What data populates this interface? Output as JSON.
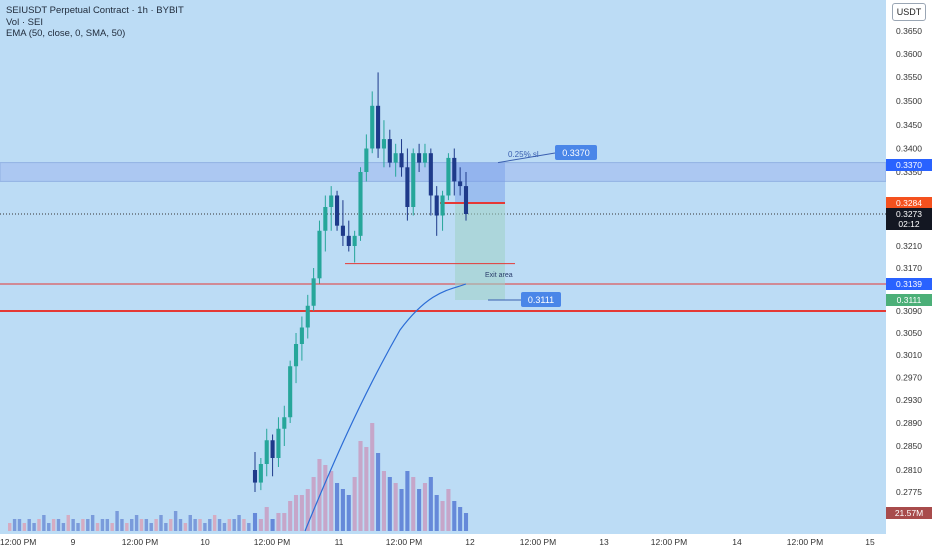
{
  "header": {
    "title": "SEIUSDT Perpetual Contract · 1h · BYBIT",
    "volume_label": "Vol · SEI",
    "indicator_label": "EMA (50, close, 0, SMA, 50)",
    "currency": "USDT"
  },
  "colors": {
    "background": "#bcdcf5",
    "up_candle": "#26a69a",
    "down_candle": "#1e3a8a",
    "ema": "#2b6cd6",
    "red_line": "#e53935",
    "zone_fill": "#9fb8f0"
  },
  "chart_data": {
    "type": "candlestick",
    "price_axis": {
      "ticks": [
        "0.3650",
        "0.3600",
        "0.3550",
        "0.3500",
        "0.3450",
        "0.3400",
        "0.3350",
        "0.3210",
        "0.3170",
        "0.3090",
        "0.3050",
        "0.3010",
        "0.2970",
        "0.2930",
        "0.2890",
        "0.2850",
        "0.2810",
        "0.2775"
      ],
      "ylim": [
        0.2745,
        0.369
      ]
    },
    "time_axis": {
      "labels": [
        "12:00 PM",
        "9",
        "12:00 PM",
        "10",
        "12:00 PM",
        "11",
        "12:00 PM",
        "12",
        "12:00 PM",
        "13",
        "12:00 PM",
        "14",
        "12:00 PM",
        "15"
      ]
    },
    "price_labels": [
      {
        "value": "0.3370",
        "style": "blue"
      },
      {
        "value": "0.3284",
        "style": "orange"
      },
      {
        "value": "0.3273",
        "style": "black"
      },
      {
        "value": "02:12",
        "style": "black"
      },
      {
        "value": "0.3139",
        "style": "blue"
      },
      {
        "value": "0.3111",
        "style": "green"
      },
      {
        "value": "21.57M",
        "style": "volume"
      }
    ],
    "levels": {
      "zone_top": 0.337,
      "zone_bottom": 0.333,
      "current_price": 0.3273,
      "entry": 0.3284,
      "red_line_1": 0.3139,
      "red_line_2": 0.309,
      "take_profit": 0.3111,
      "stop_marker": 0.337
    },
    "annotations": [
      {
        "text": "0.25% sl"
      },
      {
        "text": "0.3370"
      },
      {
        "text": "Exit area"
      },
      {
        "text": "0.3111"
      }
    ],
    "candles": [
      [
        0.281,
        0.284,
        0.2775,
        0.279
      ],
      [
        0.279,
        0.283,
        0.2778,
        0.282
      ],
      [
        0.282,
        0.288,
        0.28,
        0.286
      ],
      [
        0.286,
        0.287,
        0.28,
        0.283
      ],
      [
        0.283,
        0.29,
        0.2815,
        0.288
      ],
      [
        0.288,
        0.292,
        0.285,
        0.29
      ],
      [
        0.29,
        0.3,
        0.289,
        0.299
      ],
      [
        0.299,
        0.305,
        0.296,
        0.303
      ],
      [
        0.303,
        0.308,
        0.3,
        0.306
      ],
      [
        0.306,
        0.312,
        0.304,
        0.31
      ],
      [
        0.31,
        0.317,
        0.309,
        0.315
      ],
      [
        0.315,
        0.326,
        0.314,
        0.324
      ],
      [
        0.324,
        0.33,
        0.32,
        0.328
      ],
      [
        0.328,
        0.332,
        0.324,
        0.33
      ],
      [
        0.33,
        0.331,
        0.324,
        0.325
      ],
      [
        0.325,
        0.329,
        0.321,
        0.323
      ],
      [
        0.323,
        0.326,
        0.32,
        0.321
      ],
      [
        0.321,
        0.324,
        0.318,
        0.323
      ],
      [
        0.323,
        0.336,
        0.322,
        0.335
      ],
      [
        0.335,
        0.343,
        0.333,
        0.34
      ],
      [
        0.34,
        0.352,
        0.339,
        0.349
      ],
      [
        0.349,
        0.356,
        0.338,
        0.34
      ],
      [
        0.34,
        0.346,
        0.336,
        0.342
      ],
      [
        0.342,
        0.344,
        0.336,
        0.337
      ],
      [
        0.337,
        0.341,
        0.334,
        0.339
      ],
      [
        0.339,
        0.342,
        0.334,
        0.336
      ],
      [
        0.336,
        0.34,
        0.326,
        0.328
      ],
      [
        0.328,
        0.34,
        0.327,
        0.339
      ],
      [
        0.339,
        0.341,
        0.335,
        0.337
      ],
      [
        0.337,
        0.341,
        0.336,
        0.339
      ],
      [
        0.339,
        0.34,
        0.327,
        0.33
      ],
      [
        0.33,
        0.332,
        0.323,
        0.327
      ],
      [
        0.327,
        0.331,
        0.324,
        0.33
      ],
      [
        0.33,
        0.339,
        0.329,
        0.338
      ],
      [
        0.338,
        0.34,
        0.33,
        0.333
      ],
      [
        0.333,
        0.336,
        0.33,
        0.332
      ],
      [
        0.332,
        0.335,
        0.326,
        0.3273
      ]
    ],
    "volume": [
      3,
      2,
      4,
      2,
      3,
      3,
      5,
      6,
      6,
      7,
      9,
      12,
      11,
      10,
      8,
      7,
      6,
      9,
      15,
      14,
      18,
      13,
      10,
      9,
      8,
      7,
      10,
      9,
      7,
      8,
      9,
      6,
      5,
      7,
      5,
      4,
      3
    ],
    "grid": true
  }
}
